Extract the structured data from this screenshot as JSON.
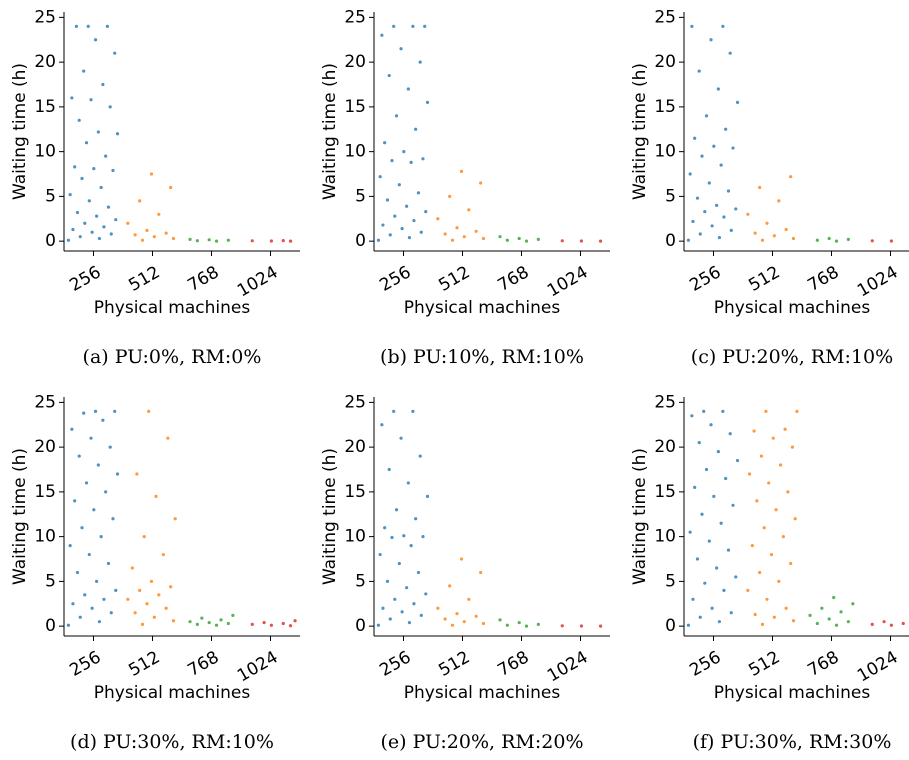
{
  "chart_data": [
    {
      "type": "strip",
      "caption": "(a) PU:0%, RM:0%",
      "xlabel": "Physical machines",
      "ylabel": "Waiting time (h)",
      "categories": [
        "256",
        "512",
        "768",
        "1024"
      ],
      "colors": [
        "#1f77b4",
        "#ff7f0e",
        "#2ca02c",
        "#d62728"
      ],
      "ylim": [
        -1.1,
        25.6
      ],
      "yticks": [
        0,
        5,
        10,
        15,
        20,
        25
      ],
      "values": [
        [
          0.1,
          0.3,
          0.5,
          0.8,
          1,
          1.3,
          1.6,
          2,
          2.4,
          2.8,
          3.2,
          3.8,
          4.5,
          5.2,
          6,
          7,
          7.9,
          8.1,
          8.3,
          9.5,
          11,
          12,
          12.2,
          13.5,
          15,
          15.8,
          16,
          17.5,
          19,
          21,
          22.5,
          24,
          24,
          24
        ],
        [
          0.1,
          0.3,
          0.5,
          0.7,
          0.9,
          1.2,
          2,
          3,
          4.5,
          6,
          7.5
        ],
        [
          0,
          0.05,
          0.1,
          0.15,
          0.2
        ],
        [
          0,
          0.02,
          0.04,
          0.06
        ]
      ]
    },
    {
      "type": "strip",
      "caption": "(b) PU:10%, RM:10%",
      "xlabel": "Physical machines",
      "ylabel": "Waiting time (h)",
      "categories": [
        "256",
        "512",
        "768",
        "1024"
      ],
      "colors": [
        "#1f77b4",
        "#ff7f0e",
        "#2ca02c",
        "#d62728"
      ],
      "ylim": [
        -1.1,
        25.6
      ],
      "yticks": [
        0,
        5,
        10,
        15,
        20,
        25
      ],
      "values": [
        [
          0.1,
          0.4,
          0.7,
          1,
          1.4,
          1.8,
          2.3,
          2.8,
          3.3,
          3.9,
          4.6,
          5.4,
          6.3,
          7.2,
          8.8,
          9,
          9.2,
          10,
          11,
          12.5,
          14,
          15.5,
          17,
          18.5,
          20,
          21.5,
          23,
          24,
          24,
          24
        ],
        [
          0.1,
          0.3,
          0.5,
          0.8,
          1.1,
          1.5,
          2.5,
          3.5,
          5,
          6.5,
          7.8
        ],
        [
          0,
          0.1,
          0.2,
          0.3,
          0.5
        ],
        [
          0,
          0.02,
          0.04
        ]
      ]
    },
    {
      "type": "strip",
      "caption": "(c) PU:20%, RM:10%",
      "xlabel": "Physical machines",
      "ylabel": "Waiting time (h)",
      "categories": [
        "256",
        "512",
        "768",
        "1024"
      ],
      "colors": [
        "#1f77b4",
        "#ff7f0e",
        "#2ca02c",
        "#d62728"
      ],
      "ylim": [
        -1.1,
        25.6
      ],
      "yticks": [
        0,
        5,
        10,
        15,
        20,
        25
      ],
      "values": [
        [
          0.1,
          0.4,
          0.8,
          1.2,
          1.7,
          2.2,
          2.7,
          3.3,
          3.6,
          4,
          4.8,
          5.6,
          6.5,
          7.5,
          8.5,
          9.5,
          10.4,
          10.6,
          11.5,
          12.5,
          14,
          15.5,
          17,
          19,
          21,
          22.5,
          24,
          24
        ],
        [
          0.1,
          0.3,
          0.6,
          0.9,
          1.3,
          2,
          3,
          4.5,
          6,
          7.2
        ],
        [
          0,
          0.1,
          0.2,
          0.3
        ],
        [
          0,
          0.02,
          0.04
        ]
      ]
    },
    {
      "type": "strip",
      "caption": "(d) PU:30%, RM:10%",
      "xlabel": "Physical machines",
      "ylabel": "Waiting time (h)",
      "categories": [
        "256",
        "512",
        "768",
        "1024"
      ],
      "colors": [
        "#1f77b4",
        "#ff7f0e",
        "#2ca02c",
        "#d62728"
      ],
      "ylim": [
        -1.1,
        25.6
      ],
      "yticks": [
        0,
        5,
        10,
        15,
        20,
        25
      ],
      "values": [
        [
          0.1,
          0.5,
          1,
          1.5,
          2,
          2.5,
          3,
          3.5,
          4,
          5,
          6,
          7,
          8,
          9,
          10,
          11,
          12,
          13,
          14,
          15,
          16,
          17,
          18,
          19,
          20,
          21,
          22,
          23,
          23.8,
          24,
          24
        ],
        [
          0.2,
          0.6,
          1,
          1.5,
          2,
          2.5,
          3,
          3.5,
          4,
          4.4,
          5,
          6.5,
          8,
          10,
          12,
          14.5,
          17,
          21,
          24
        ],
        [
          0.1,
          0.2,
          0.3,
          0.4,
          0.5,
          0.7,
          0.9,
          1.2
        ],
        [
          0.05,
          0.1,
          0.2,
          0.3,
          0.4,
          0.6
        ]
      ]
    },
    {
      "type": "strip",
      "caption": "(e) PU:20%, RM:20%",
      "xlabel": "Physical machines",
      "ylabel": "Waiting time (h)",
      "categories": [
        "256",
        "512",
        "768",
        "1024"
      ],
      "colors": [
        "#1f77b4",
        "#ff7f0e",
        "#2ca02c",
        "#d62728"
      ],
      "ylim": [
        -1.1,
        25.6
      ],
      "yticks": [
        0,
        5,
        10,
        15,
        20,
        25
      ],
      "values": [
        [
          0.1,
          0.4,
          0.8,
          1.2,
          1.6,
          2,
          2.5,
          3,
          3.6,
          4.3,
          5,
          6,
          7,
          8,
          9,
          9.9,
          10,
          10.1,
          11,
          12,
          13,
          14.5,
          16,
          17.5,
          19,
          21,
          22.5,
          24,
          24
        ],
        [
          0.1,
          0.3,
          0.5,
          0.8,
          1.1,
          1.4,
          2,
          3,
          4.5,
          6,
          7.5
        ],
        [
          0,
          0.1,
          0.2,
          0.4,
          0.7
        ],
        [
          0,
          0.02,
          0.04
        ]
      ]
    },
    {
      "type": "strip",
      "caption": "(f) PU:30%, RM:30%",
      "xlabel": "Physical machines",
      "ylabel": "Waiting time (h)",
      "categories": [
        "256",
        "512",
        "768",
        "1024"
      ],
      "colors": [
        "#1f77b4",
        "#ff7f0e",
        "#2ca02c",
        "#d62728"
      ],
      "ylim": [
        -1.1,
        25.6
      ],
      "yticks": [
        0,
        5,
        10,
        15,
        20,
        25
      ],
      "values": [
        [
          0.1,
          0.5,
          1,
          1.5,
          2,
          3,
          4,
          4.8,
          5.5,
          6.5,
          7.5,
          8.5,
          9.5,
          10.5,
          11.5,
          12.5,
          13.5,
          14.5,
          15.5,
          16.5,
          17.5,
          18.5,
          19.5,
          20.5,
          21.5,
          22.5,
          23.5,
          24,
          24
        ],
        [
          0.2,
          0.6,
          1,
          1.3,
          2,
          3,
          4,
          5,
          6,
          7,
          8,
          9,
          10,
          11,
          12,
          13,
          14,
          15,
          16,
          17,
          18,
          19,
          20,
          21,
          21.8,
          22,
          24,
          24
        ],
        [
          0.1,
          0.3,
          0.5,
          0.8,
          1.2,
          1.6,
          2,
          2.5,
          3.2
        ],
        [
          0.05,
          0.1,
          0.2,
          0.3,
          0.5,
          0.7
        ]
      ]
    }
  ]
}
